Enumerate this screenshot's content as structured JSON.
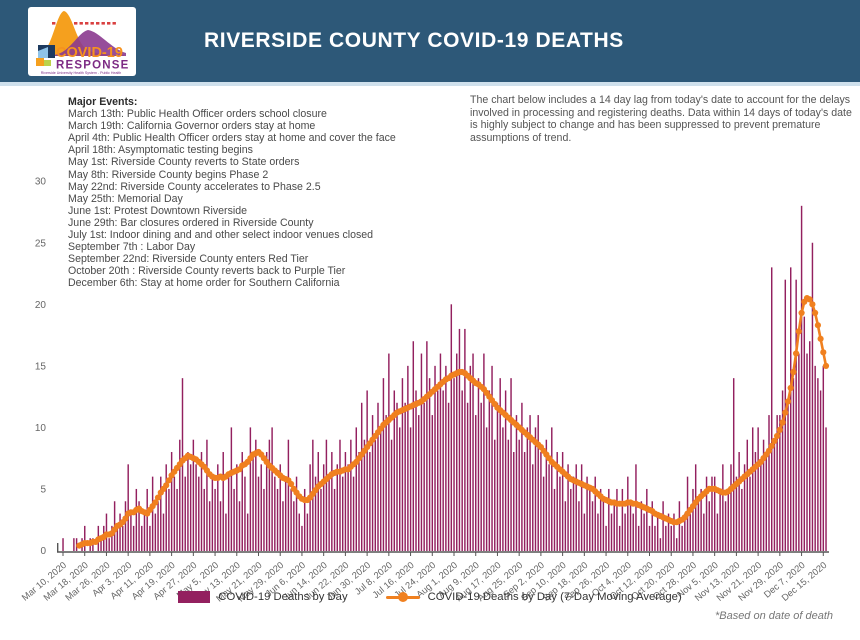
{
  "header": {
    "title": "RIVERSIDE COUNTY COVID-19 DEATHS",
    "logo": {
      "line1": "COVID-19",
      "line2": "RESPONSE",
      "line3": "Riverside University Health System - Public Health"
    }
  },
  "note": {
    "text": "The chart below includes a 14 day lag from today's date to account for the delays involved in processing and registering deaths. Data within 14 days of today's date is highly subject to change and has been suppressed to prevent premature assumptions of trend."
  },
  "events": {
    "heading": "Major Events:",
    "lines": [
      "March 13th: Public Health Officer orders school closure",
      "March 19th: California Governor orders stay at home",
      "April 4th: Public Health Officer orders stay at home and cover the face",
      "April 18th: Asymptomatic testing begins",
      "May 1st: Riverside County reverts to State orders",
      "May 8th: Riverside County begins Phase 2",
      "May 22nd: Riverside County accelerates to Phase 2.5",
      "May 25th: Memorial Day",
      "June 1st: Protest Downtown Riverside",
      "June 29th: Bar closures ordered in Riverside County",
      "July 1st: Indoor dining and and other select indoor venues closed",
      "September 7th : Labor Day",
      "September 22nd: Riverside County enters Red Tier",
      "October 20th : Riverside County reverts back to Purple Tier",
      "December 6th: Stay at home order for Southern California"
    ]
  },
  "footnote": "*Based on date of death",
  "colors": {
    "header_bg": "#2d5878",
    "bar": "#93205f",
    "line": "#f0801f",
    "axis": "#555555",
    "tick_text": "#666666"
  },
  "chart_data": {
    "type": "bar",
    "title": "",
    "xlabel": "",
    "ylabel": "",
    "start_date": "Mar 10, 2020",
    "end_date": "Dec 16, 2020",
    "x_tick_interval_days": 8,
    "x_tick_labels": [
      "Mar 10, 2020",
      "Mar 18, 2020",
      "Mar 26, 2020",
      "Apr 3, 2020",
      "Apr 11, 2020",
      "Apr 19, 2020",
      "Apr 27, 2020",
      "May 5, 2020",
      "May 13, 2020",
      "May 21, 2020",
      "May 29, 2020",
      "Jun 6, 2020",
      "Jun 14, 2020",
      "Jun 22, 2020",
      "Jun 30, 2020",
      "Jul 8, 2020",
      "Jul 16, 2020",
      "Jul 24, 2020",
      "Aug 1, 2020",
      "Aug 9, 2020",
      "Aug 17, 2020",
      "Aug 25, 2020",
      "Sep 2, 2020",
      "Sep 10, 2020",
      "Sep 18, 2020",
      "Sep 26, 2020",
      "Oct 4, 2020",
      "Oct 12, 2020",
      "Oct 20, 2020",
      "Oct 28, 2020",
      "Nov 5, 2020",
      "Nov 13, 2020",
      "Nov 21, 2020",
      "Nov 29, 2020",
      "Dec 7, 2020",
      "Dec 15, 2020"
    ],
    "ylim": [
      0,
      30
    ],
    "y_ticks": [
      0,
      5,
      10,
      15,
      20,
      25,
      30
    ],
    "grid": false,
    "legend_position": "bottom",
    "series": [
      {
        "name": "COVID-19 Deaths by Day",
        "type": "bar",
        "color": "#93205f",
        "values": [
          1,
          0,
          0,
          0,
          1,
          1,
          0,
          1,
          2,
          0,
          1,
          1,
          0,
          2,
          1,
          2,
          3,
          1,
          2,
          4,
          2,
          3,
          2,
          4,
          7,
          3,
          2,
          5,
          4,
          2,
          3,
          5,
          2,
          6,
          3,
          4,
          6,
          3,
          7,
          5,
          8,
          6,
          5,
          9,
          14,
          6,
          8,
          7,
          9,
          7,
          6,
          8,
          5,
          9,
          4,
          6,
          5,
          7,
          4,
          8,
          3,
          6,
          10,
          5,
          7,
          4,
          8,
          6,
          3,
          10,
          8,
          9,
          6,
          7,
          5,
          8,
          9,
          10,
          6,
          5,
          7,
          4,
          6,
          9,
          5,
          4,
          6,
          3,
          2,
          5,
          3,
          7,
          9,
          6,
          8,
          5,
          7,
          9,
          6,
          8,
          5,
          7,
          9,
          6,
          8,
          7,
          9,
          6,
          10,
          8,
          12,
          9,
          13,
          8,
          11,
          9,
          12,
          10,
          14,
          11,
          16,
          9,
          13,
          12,
          10,
          14,
          12,
          15,
          10,
          17,
          13,
          11,
          16,
          12,
          17,
          14,
          11,
          15,
          13,
          16,
          13,
          15,
          12,
          20,
          14,
          16,
          18,
          13,
          18,
          12,
          15,
          16,
          11,
          14,
          12,
          16,
          10,
          13,
          15,
          9,
          12,
          14,
          10,
          13,
          9,
          14,
          8,
          11,
          9,
          12,
          8,
          10,
          11,
          7,
          10,
          11,
          8,
          6,
          9,
          7,
          10,
          5,
          8,
          6,
          8,
          4,
          7,
          5,
          6,
          7,
          4,
          7,
          3,
          6,
          5,
          4,
          6,
          3,
          5,
          4,
          2,
          5,
          3,
          4,
          5,
          2,
          5,
          3,
          6,
          4,
          3,
          7,
          2,
          4,
          3,
          5,
          2,
          4,
          2,
          3,
          1,
          4,
          2,
          3,
          2,
          3,
          1,
          4,
          2,
          3,
          6,
          3,
          5,
          7,
          4,
          5,
          3,
          6,
          4,
          6,
          6,
          3,
          5,
          7,
          4,
          5,
          7,
          14,
          6,
          8,
          5,
          7,
          9,
          6,
          10,
          8,
          10,
          7,
          9,
          8,
          11,
          23,
          9,
          11,
          11,
          13,
          22,
          12,
          23,
          14,
          22,
          16,
          28,
          19,
          16,
          17,
          25,
          15,
          14,
          13,
          15,
          10
        ]
      },
      {
        "name": "COVID-19 Deaths by Day (7-Day Moving Average)",
        "type": "line",
        "color": "#f0801f",
        "values": [
          null,
          null,
          null,
          null,
          null,
          null,
          0.4,
          0.5,
          0.6,
          0.6,
          0.6,
          0.7,
          0.7,
          0.9,
          1.0,
          1.1,
          1.3,
          1.3,
          1.4,
          1.7,
          2.0,
          2.1,
          2.3,
          2.6,
          3.0,
          3.1,
          3.1,
          3.3,
          3.4,
          3.2,
          3.1,
          3.0,
          3.3,
          3.6,
          3.9,
          4.3,
          4.7,
          5.0,
          5.3,
          5.7,
          6.1,
          6.4,
          6.7,
          7.0,
          7.3,
          7.5,
          7.7,
          7.6,
          7.5,
          7.4,
          7.2,
          7.0,
          6.8,
          6.5,
          6.2,
          6.0,
          5.9,
          5.9,
          6.0,
          5.9,
          6.0,
          6.2,
          6.3,
          6.4,
          6.5,
          6.6,
          6.9,
          7.0,
          7.2,
          7.5,
          7.8,
          7.9,
          8.0,
          7.8,
          7.5,
          7.2,
          6.9,
          6.7,
          6.5,
          6.3,
          6.1,
          5.9,
          5.8,
          5.7,
          5.4,
          5.0,
          4.7,
          4.4,
          4.2,
          4.1,
          4.1,
          4.3,
          4.6,
          4.9,
          5.2,
          5.4,
          5.6,
          5.8,
          6.0,
          6.2,
          6.3,
          6.4,
          6.4,
          6.5,
          6.6,
          6.6,
          6.8,
          7.0,
          7.2,
          7.5,
          7.8,
          8.1,
          8.4,
          8.7,
          9.0,
          9.3,
          9.6,
          9.9,
          10.2,
          10.4,
          10.6,
          10.8,
          11.0,
          11.2,
          11.3,
          11.4,
          11.5,
          11.6,
          11.7,
          11.8,
          11.9,
          12.0,
          12.1,
          12.3,
          12.5,
          12.7,
          12.9,
          13.1,
          13.3,
          13.5,
          13.7,
          13.9,
          14.0,
          14.2,
          14.3,
          14.4,
          14.5,
          14.5,
          14.4,
          14.2,
          14.0,
          13.8,
          13.6,
          13.5,
          13.3,
          13.1,
          12.8,
          12.5,
          12.2,
          11.9,
          11.6,
          11.4,
          11.2,
          11.0,
          10.8,
          10.6,
          10.4,
          10.2,
          10.0,
          9.8,
          9.6,
          9.4,
          9.2,
          9.0,
          8.8,
          8.6,
          8.4,
          8.1,
          7.8,
          7.5,
          7.2,
          7.0,
          6.8,
          6.6,
          6.4,
          6.2,
          6.0,
          5.8,
          5.7,
          5.6,
          5.5,
          5.4,
          5.3,
          5.2,
          5.1,
          5.0,
          4.8,
          4.6,
          4.4,
          4.2,
          4.1,
          4.0,
          3.9,
          3.9,
          3.8,
          3.8,
          3.8,
          3.8,
          3.9,
          3.9,
          3.8,
          3.8,
          3.7,
          3.6,
          3.5,
          3.4,
          3.3,
          3.2,
          3.0,
          2.9,
          2.8,
          2.7,
          2.6,
          2.5,
          2.4,
          2.3,
          2.3,
          2.4,
          2.5,
          2.7,
          3.0,
          3.3,
          3.6,
          3.9,
          4.2,
          4.4,
          4.6,
          4.8,
          5.0,
          5.0,
          5.0,
          4.9,
          4.8,
          4.7,
          4.7,
          4.8,
          5.0,
          5.2,
          5.4,
          5.6,
          5.8,
          6.0,
          6.2,
          6.4,
          6.6,
          6.8,
          7.0,
          7.2,
          7.5,
          7.8,
          8.1,
          8.5,
          8.9,
          9.3,
          9.8,
          10.4,
          11.2,
          12.1,
          13.2,
          14.5,
          16.0,
          17.8,
          19.3,
          20.2,
          20.5,
          20.4,
          20.0,
          19.3,
          18.3,
          17.2,
          16.1,
          15.0
        ]
      }
    ]
  }
}
